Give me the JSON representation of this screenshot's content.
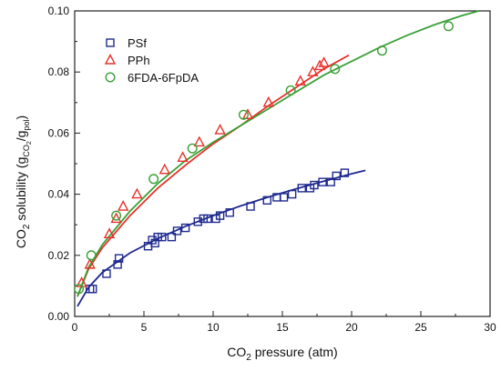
{
  "chart_data": {
    "type": "scatter",
    "title": "",
    "xlabel": {
      "pre": "CO",
      "sub": "2",
      "post": " pressure (atm)"
    },
    "ylabel": {
      "a": "CO",
      "a_sub": "2",
      "b": " solubility (g",
      "b_sub": "CO",
      "b_sub2": "2",
      "c": "/g",
      "c_sub": "pol",
      "d": ")"
    },
    "xlim": [
      0,
      30
    ],
    "ylim": [
      0,
      0.1
    ],
    "xticks": [
      0,
      5,
      10,
      15,
      20,
      25,
      30
    ],
    "yticks": [
      0.0,
      0.02,
      0.04,
      0.06,
      0.08,
      0.1
    ],
    "xtick_labels": [
      "0",
      "5",
      "10",
      "15",
      "20",
      "25",
      "30"
    ],
    "ytick_labels": [
      "0.00",
      "0.02",
      "0.04",
      "0.06",
      "0.08",
      "0.10"
    ],
    "grid": false,
    "legend": "top-left",
    "series": [
      {
        "name": "PSf",
        "marker": "square",
        "color": "#1f2a8f",
        "points": [
          [
            1.1,
            0.009
          ],
          [
            1.3,
            0.009
          ],
          [
            2.3,
            0.014
          ],
          [
            3.1,
            0.017
          ],
          [
            3.2,
            0.019
          ],
          [
            5.3,
            0.023
          ],
          [
            5.6,
            0.025
          ],
          [
            5.8,
            0.024
          ],
          [
            6.0,
            0.026
          ],
          [
            6.3,
            0.026
          ],
          [
            7.0,
            0.026
          ],
          [
            7.4,
            0.028
          ],
          [
            8.0,
            0.029
          ],
          [
            8.9,
            0.031
          ],
          [
            9.3,
            0.032
          ],
          [
            9.6,
            0.032
          ],
          [
            10.2,
            0.032
          ],
          [
            10.5,
            0.033
          ],
          [
            11.2,
            0.034
          ],
          [
            12.7,
            0.036
          ],
          [
            13.9,
            0.038
          ],
          [
            14.6,
            0.039
          ],
          [
            15.1,
            0.039
          ],
          [
            15.7,
            0.04
          ],
          [
            16.4,
            0.042
          ],
          [
            17.0,
            0.042
          ],
          [
            17.3,
            0.043
          ],
          [
            17.9,
            0.044
          ],
          [
            18.5,
            0.044
          ],
          [
            18.9,
            0.046
          ],
          [
            19.5,
            0.047
          ]
        ],
        "fit": [
          [
            0.2,
            0.0033
          ],
          [
            1,
            0.0095
          ],
          [
            2,
            0.0144
          ],
          [
            4,
            0.0208
          ],
          [
            6,
            0.0255
          ],
          [
            8,
            0.0295
          ],
          [
            10,
            0.033
          ],
          [
            12,
            0.0362
          ],
          [
            14,
            0.0391
          ],
          [
            16,
            0.0418
          ],
          [
            18,
            0.0443
          ],
          [
            20,
            0.0467
          ],
          [
            21,
            0.0478
          ]
        ]
      },
      {
        "name": "PPh",
        "marker": "triangle",
        "color": "#e8312a",
        "points": [
          [
            0.5,
            0.011
          ],
          [
            1.1,
            0.017
          ],
          [
            2.5,
            0.027
          ],
          [
            3.0,
            0.032
          ],
          [
            3.5,
            0.036
          ],
          [
            4.5,
            0.04
          ],
          [
            6.5,
            0.048
          ],
          [
            7.8,
            0.052
          ],
          [
            9.0,
            0.057
          ],
          [
            10.5,
            0.061
          ],
          [
            12.5,
            0.066
          ],
          [
            14.0,
            0.07
          ],
          [
            16.3,
            0.077
          ],
          [
            17.2,
            0.08
          ],
          [
            17.7,
            0.082
          ],
          [
            18.0,
            0.083
          ]
        ],
        "fit": [
          [
            0.2,
            0.0065
          ],
          [
            1,
            0.0155
          ],
          [
            2,
            0.0225
          ],
          [
            4,
            0.033
          ],
          [
            6,
            0.042
          ],
          [
            8,
            0.0495
          ],
          [
            10,
            0.0565
          ],
          [
            12,
            0.0625
          ],
          [
            14,
            0.069
          ],
          [
            16,
            0.075
          ],
          [
            18,
            0.081
          ],
          [
            19.8,
            0.0855
          ]
        ]
      },
      {
        "name": "6FDA-6FpDA",
        "marker": "circle",
        "color": "#3aa036",
        "points": [
          [
            0.3,
            0.009
          ],
          [
            1.2,
            0.02
          ],
          [
            3.0,
            0.033
          ],
          [
            5.7,
            0.045
          ],
          [
            8.5,
            0.055
          ],
          [
            12.2,
            0.066
          ],
          [
            15.6,
            0.074
          ],
          [
            18.8,
            0.081
          ],
          [
            22.2,
            0.087
          ],
          [
            27.0,
            0.095
          ]
        ],
        "fit": [
          [
            0.2,
            0.0065
          ],
          [
            1,
            0.016
          ],
          [
            2,
            0.0235
          ],
          [
            4,
            0.0345
          ],
          [
            6,
            0.0435
          ],
          [
            8,
            0.051
          ],
          [
            10,
            0.057
          ],
          [
            12,
            0.0625
          ],
          [
            14,
            0.068
          ],
          [
            16,
            0.0735
          ],
          [
            18,
            0.079
          ],
          [
            20,
            0.0835
          ],
          [
            22,
            0.088
          ],
          [
            24,
            0.092
          ],
          [
            26,
            0.0955
          ],
          [
            28,
            0.0985
          ],
          [
            29.2,
            0.1
          ]
        ]
      }
    ]
  }
}
